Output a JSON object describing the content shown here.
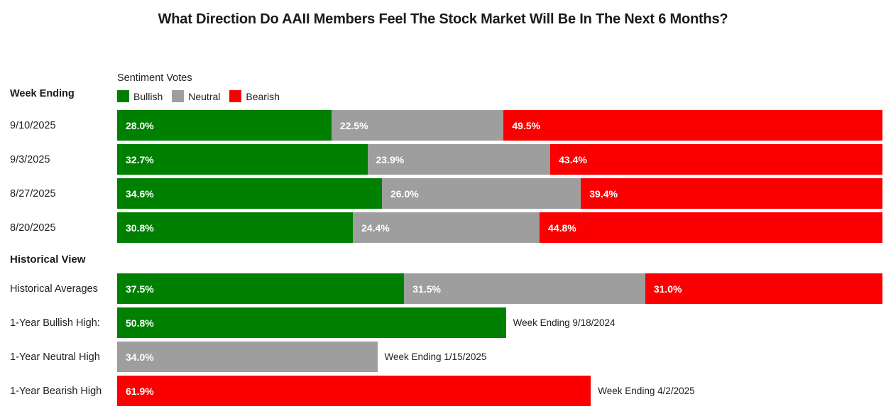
{
  "title": "What Direction Do AAII Members Feel The Stock Market Will Be In The Next 6 Months?",
  "colors": {
    "bullish": "#008000",
    "neutral": "#9e9e9e",
    "bearish": "#fa0000",
    "text": "#212121",
    "bar_value_text": "#ffffff",
    "background": "#ffffff"
  },
  "legend": {
    "title": "Sentiment Votes",
    "items": [
      {
        "label": "Bullish",
        "series": "bullish",
        "color": "#008000"
      },
      {
        "label": "Neutral",
        "series": "neutral",
        "color": "#9e9e9e"
      },
      {
        "label": "Bearish",
        "series": "bearish",
        "color": "#fa0000"
      }
    ]
  },
  "sections": {
    "weekly_heading": "Week Ending",
    "historical_heading": "Historical View"
  },
  "chart_data": {
    "type": "bar",
    "orientation": "horizontal",
    "stacked": true,
    "unit": "%",
    "xlim": [
      0,
      100
    ],
    "grid": false,
    "legend_position": "top-left",
    "series_names": [
      "Bullish",
      "Neutral",
      "Bearish"
    ],
    "weekly_rows": [
      {
        "label": "9/10/2025",
        "bullish": 28.0,
        "neutral": 22.5,
        "bearish": 49.5
      },
      {
        "label": "9/3/2025",
        "bullish": 32.7,
        "neutral": 23.9,
        "bearish": 43.4
      },
      {
        "label": "8/27/2025",
        "bullish": 34.6,
        "neutral": 26.0,
        "bearish": 39.4
      },
      {
        "label": "8/20/2025",
        "bullish": 30.8,
        "neutral": 24.4,
        "bearish": 44.8
      }
    ],
    "historical_rows": [
      {
        "label": "Historical Averages",
        "kind": "stacked",
        "bullish": 37.5,
        "neutral": 31.5,
        "bearish": 31.0,
        "annotation": ""
      },
      {
        "label": "1-Year Bullish High:",
        "kind": "single",
        "series": "bullish",
        "value": 50.8,
        "annotation": "Week Ending 9/18/2024"
      },
      {
        "label": "1-Year Neutral High",
        "kind": "single",
        "series": "neutral",
        "value": 34.0,
        "annotation": "Week Ending 1/15/2025"
      },
      {
        "label": "1-Year Bearish High",
        "kind": "single",
        "series": "bearish",
        "value": 61.9,
        "annotation": "Week Ending 4/2/2025"
      }
    ]
  }
}
